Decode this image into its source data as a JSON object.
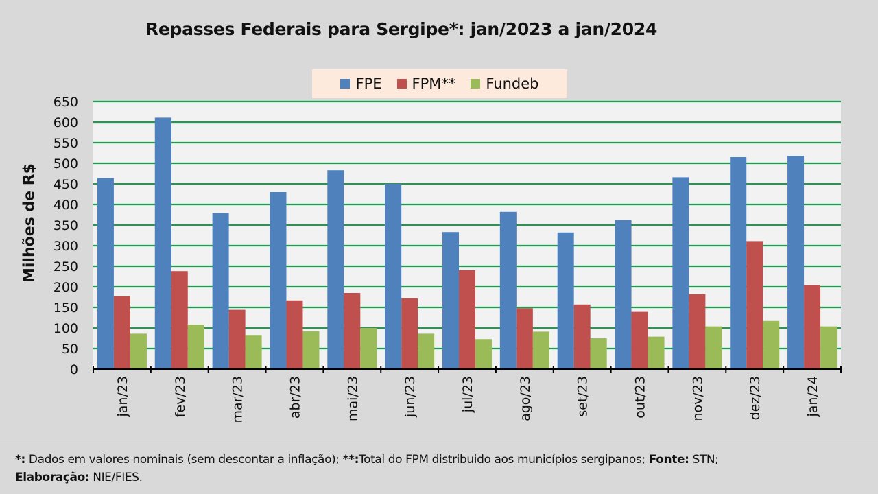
{
  "chart_data": {
    "type": "bar",
    "title": "Repasses Federais para Sergipe*: jan/2023 a jan/2024",
    "xlabel": "",
    "ylabel": "Milhões de R$",
    "ylim": [
      0,
      650
    ],
    "yticks": [
      0,
      50,
      100,
      150,
      200,
      250,
      300,
      350,
      400,
      450,
      500,
      550,
      600,
      650
    ],
    "grid": true,
    "legend_position": "top-center",
    "categories": [
      "jan/23",
      "fev/23",
      "mar/23",
      "abr/23",
      "mai/23",
      "jun/23",
      "jul/23",
      "ago/23",
      "set/23",
      "out/23",
      "nov/23",
      "dez/23",
      "jan/24"
    ],
    "series": [
      {
        "name": "FPE",
        "color": "#4f81bd",
        "values": [
          464,
          611,
          379,
          430,
          483,
          450,
          333,
          382,
          332,
          362,
          466,
          515,
          518
        ]
      },
      {
        "name": "FPM**",
        "color": "#c0504d",
        "values": [
          177,
          238,
          144,
          167,
          185,
          172,
          240,
          148,
          157,
          139,
          182,
          311,
          204
        ]
      },
      {
        "name": "Fundeb",
        "color": "#9bbb59",
        "values": [
          86,
          108,
          83,
          92,
          100,
          86,
          73,
          91,
          75,
          79,
          104,
          117,
          104
        ]
      }
    ],
    "colors": {
      "grid": "#1e9b4e",
      "plot_bg": "#f2f2f2",
      "axis": "#000000"
    }
  },
  "footer": {
    "note1_mark": "*:",
    "note1_text": " Dados em valores nominais (sem descontar a inflação); ",
    "note2_mark": "**:",
    "note2_text": "Total  do FPM distribuido aos municípios sergipanos; ",
    "source_label": "Fonte:",
    "source_text": " STN;",
    "credit_label": "Elaboração:",
    "credit_text": " NIE/FIES."
  }
}
